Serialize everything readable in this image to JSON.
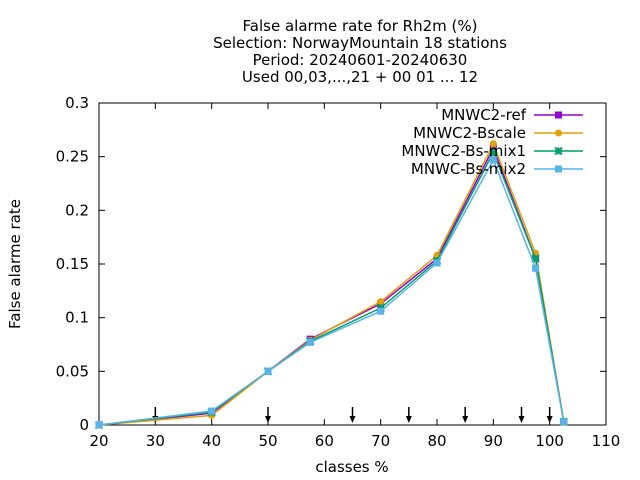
{
  "chart_data": {
    "type": "line",
    "title": [
      "False alarme rate  for Rh2m (%)",
      "Selection: NorwayMountain     18 stations",
      "Period: 20240601-20240630",
      "Used 00,03,...,21 + 00 01 ... 12"
    ],
    "xlabel": "classes %",
    "ylabel": "False alarme rate",
    "xlim": [
      20,
      110
    ],
    "ylim": [
      0,
      0.3
    ],
    "xticks": [
      20,
      30,
      40,
      50,
      60,
      70,
      80,
      90,
      100,
      110
    ],
    "xtick_labels": [
      "20",
      "30",
      "40",
      "50",
      "60",
      "70",
      "80",
      "90",
      "100",
      "110"
    ],
    "yticks": [
      0,
      0.05,
      0.1,
      0.15,
      0.2,
      0.25,
      0.3
    ],
    "ytick_labels": [
      "0",
      "0.05",
      "0.1",
      "0.15",
      "0.2",
      "0.25",
      "0.3"
    ],
    "grid": false,
    "legend_position": "top-right",
    "arrow_markers_x": [
      30,
      50,
      65,
      75,
      85,
      95,
      100
    ],
    "x": [
      20,
      40,
      50,
      57.5,
      70,
      80,
      90,
      97.5,
      102.5
    ],
    "series": [
      {
        "name": "MNWC2-ref",
        "color": "#9400d3",
        "marker": "square",
        "values": [
          0.0,
          0.011,
          0.05,
          0.08,
          0.113,
          0.155,
          0.258,
          0.155,
          0.003
        ]
      },
      {
        "name": "MNWC2-Bscale",
        "color": "#e69f00",
        "marker": "circle",
        "values": [
          0.0,
          0.009,
          0.05,
          0.079,
          0.115,
          0.158,
          0.262,
          0.16,
          0.003
        ]
      },
      {
        "name": "MNWC2-Bs-mix1",
        "color": "#009e73",
        "marker": "star",
        "values": [
          0.0,
          0.012,
          0.05,
          0.078,
          0.109,
          0.153,
          0.254,
          0.155,
          0.003
        ]
      },
      {
        "name": "MNWC-Bs-mix2",
        "color": "#56b4e9",
        "marker": "square",
        "values": [
          0.0,
          0.013,
          0.05,
          0.077,
          0.106,
          0.151,
          0.247,
          0.146,
          0.003
        ]
      }
    ]
  }
}
